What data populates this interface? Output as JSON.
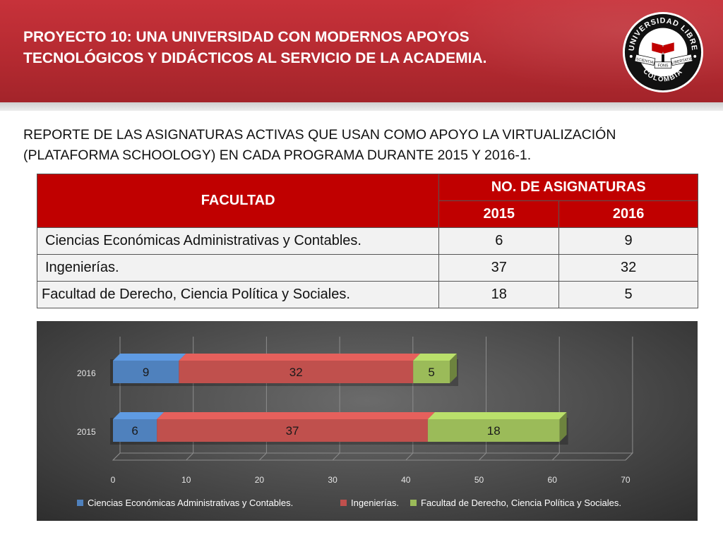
{
  "header": {
    "title_line1": "PROYECTO 10: UNA UNIVERSIDAD CON MODERNOS APOYOS",
    "title_line2": "TECNOLÓGICOS Y DIDÁCTICOS AL SERVICIO DE LA ACADEMIA.",
    "logo": {
      "top_text": "UNIVERSIDAD LIBRE",
      "bottom_text": "COLOMBIA",
      "ribbon_left": "SCIENTIA",
      "ribbon_center": "FONS",
      "ribbon_right": "LIBERTATIS",
      "colors": {
        "ring": "#111111",
        "inner": "#ffffff",
        "accent": "#c00000"
      }
    }
  },
  "report": {
    "subtitle_line1": "REPORTE DE LAS ASIGNATURAS ACTIVAS QUE USAN COMO APOYO LA VIRTUALIZACIÓN",
    "subtitle_line2": "(PLATAFORMA SCHOOLOGY)  EN CADA PROGRAMA DURANTE 2015 Y 2016-1."
  },
  "table": {
    "header_facultad": "FACULTAD",
    "header_group": "NO. DE ASIGNATURAS",
    "year_2015": "2015",
    "year_2016": "2016",
    "rows": [
      {
        "facultad": "Ciencias Económicas Administrativas y Contables.",
        "v2015": "6",
        "v2016": "9"
      },
      {
        "facultad": "Ingenierías.",
        "v2015": "37",
        "v2016": "32"
      },
      {
        "facultad": "Facultad de Derecho, Ciencia Política y Sociales.",
        "v2015": "18",
        "v2016": "5"
      }
    ],
    "colors": {
      "header_bg": "#c00000",
      "cell_bg": "#f2f2f2"
    }
  },
  "chart_data": {
    "type": "bar",
    "orientation": "horizontal",
    "stacked": true,
    "categories": [
      "2015",
      "2016"
    ],
    "series": [
      {
        "name": "Ciencias Económicas Administrativas y Contables.",
        "values": [
          6,
          9
        ],
        "color": "#4f81bd"
      },
      {
        "name": "Ingenierías.",
        "values": [
          37,
          32
        ],
        "color": "#c0504d"
      },
      {
        "name": "Facultad de Derecho, Ciencia Política y Sociales.",
        "values": [
          18,
          5
        ],
        "color": "#9bbb59"
      }
    ],
    "xlim": [
      0,
      70
    ],
    "xticks": [
      0,
      10,
      20,
      30,
      40,
      50,
      60,
      70
    ],
    "xlabel": "",
    "ylabel": "",
    "grid": true,
    "legend_position": "bottom",
    "data_labels": true
  }
}
